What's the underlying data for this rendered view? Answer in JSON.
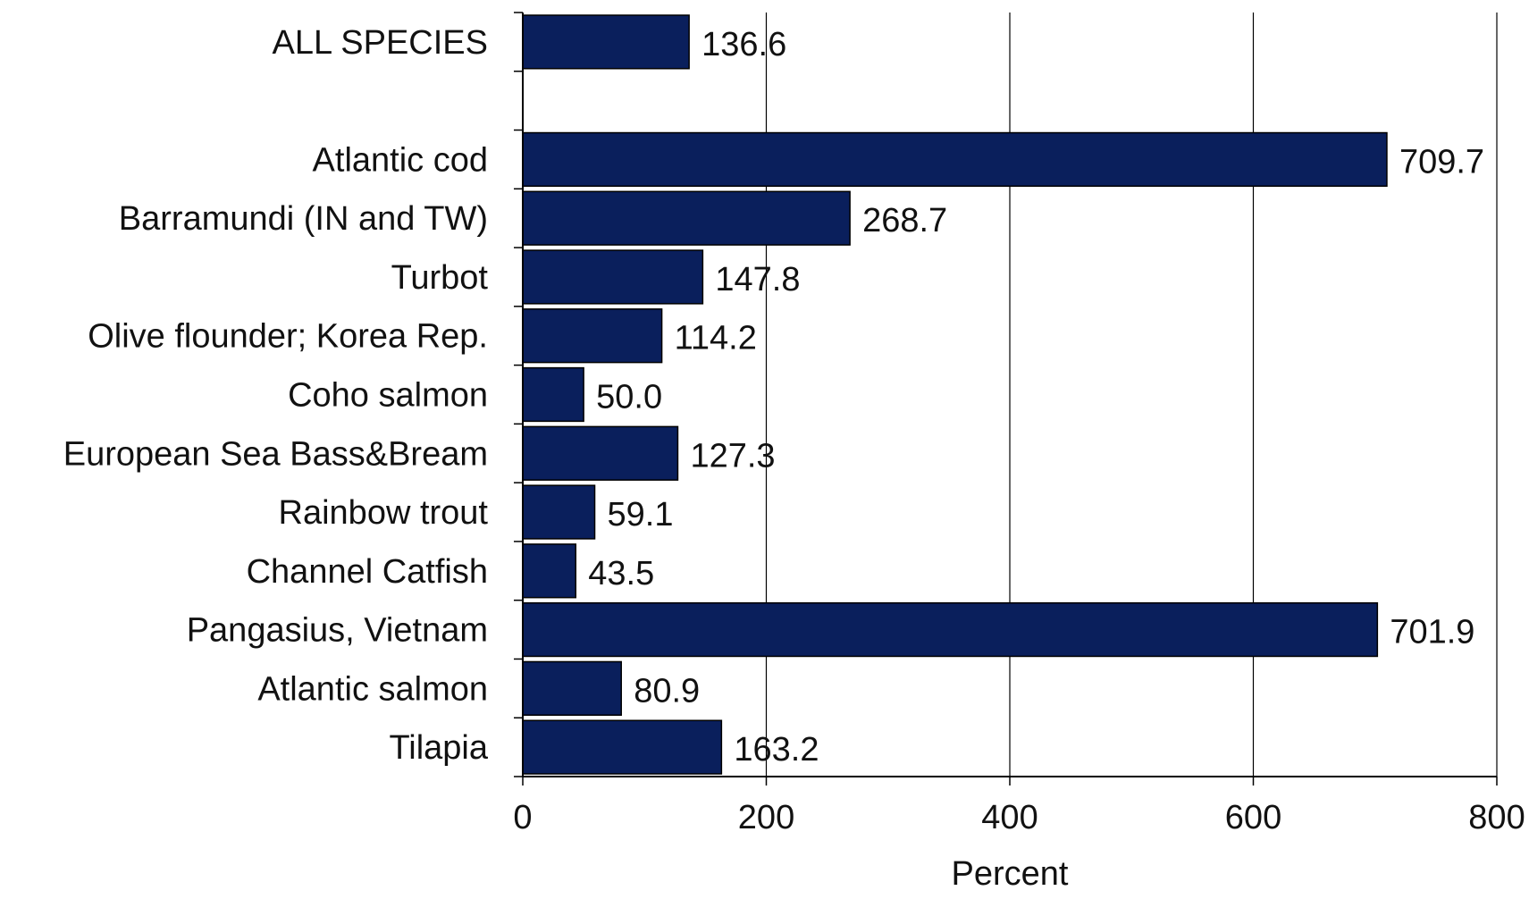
{
  "chart_data": {
    "type": "bar",
    "orientation": "horizontal",
    "xlabel": "Percent",
    "ylabel": "",
    "xlim": [
      0,
      800
    ],
    "xticks": [
      0,
      200,
      400,
      600,
      800
    ],
    "grid": "vertical",
    "bar_color": "#0a1f5c",
    "categories": [
      "ALL SPECIES",
      "",
      "Atlantic cod",
      "Barramundi (IN and TW)",
      "Turbot",
      "Olive flounder; Korea Rep.",
      "Coho salmon",
      "European Sea Bass&Bream",
      "Rainbow trout",
      "Channel Catfish",
      "Pangasius, Vietnam",
      "Atlantic salmon",
      "Tilapia"
    ],
    "values": [
      136.6,
      null,
      709.7,
      268.7,
      147.8,
      114.2,
      50.0,
      127.3,
      59.1,
      43.5,
      701.9,
      80.9,
      163.2
    ],
    "value_labels": [
      "136.6",
      "",
      "709.7",
      "268.7",
      "147.8",
      "114.2",
      "50.0",
      "127.3",
      "59.1",
      "43.5",
      "701.9",
      "80.9",
      "163.2"
    ]
  }
}
